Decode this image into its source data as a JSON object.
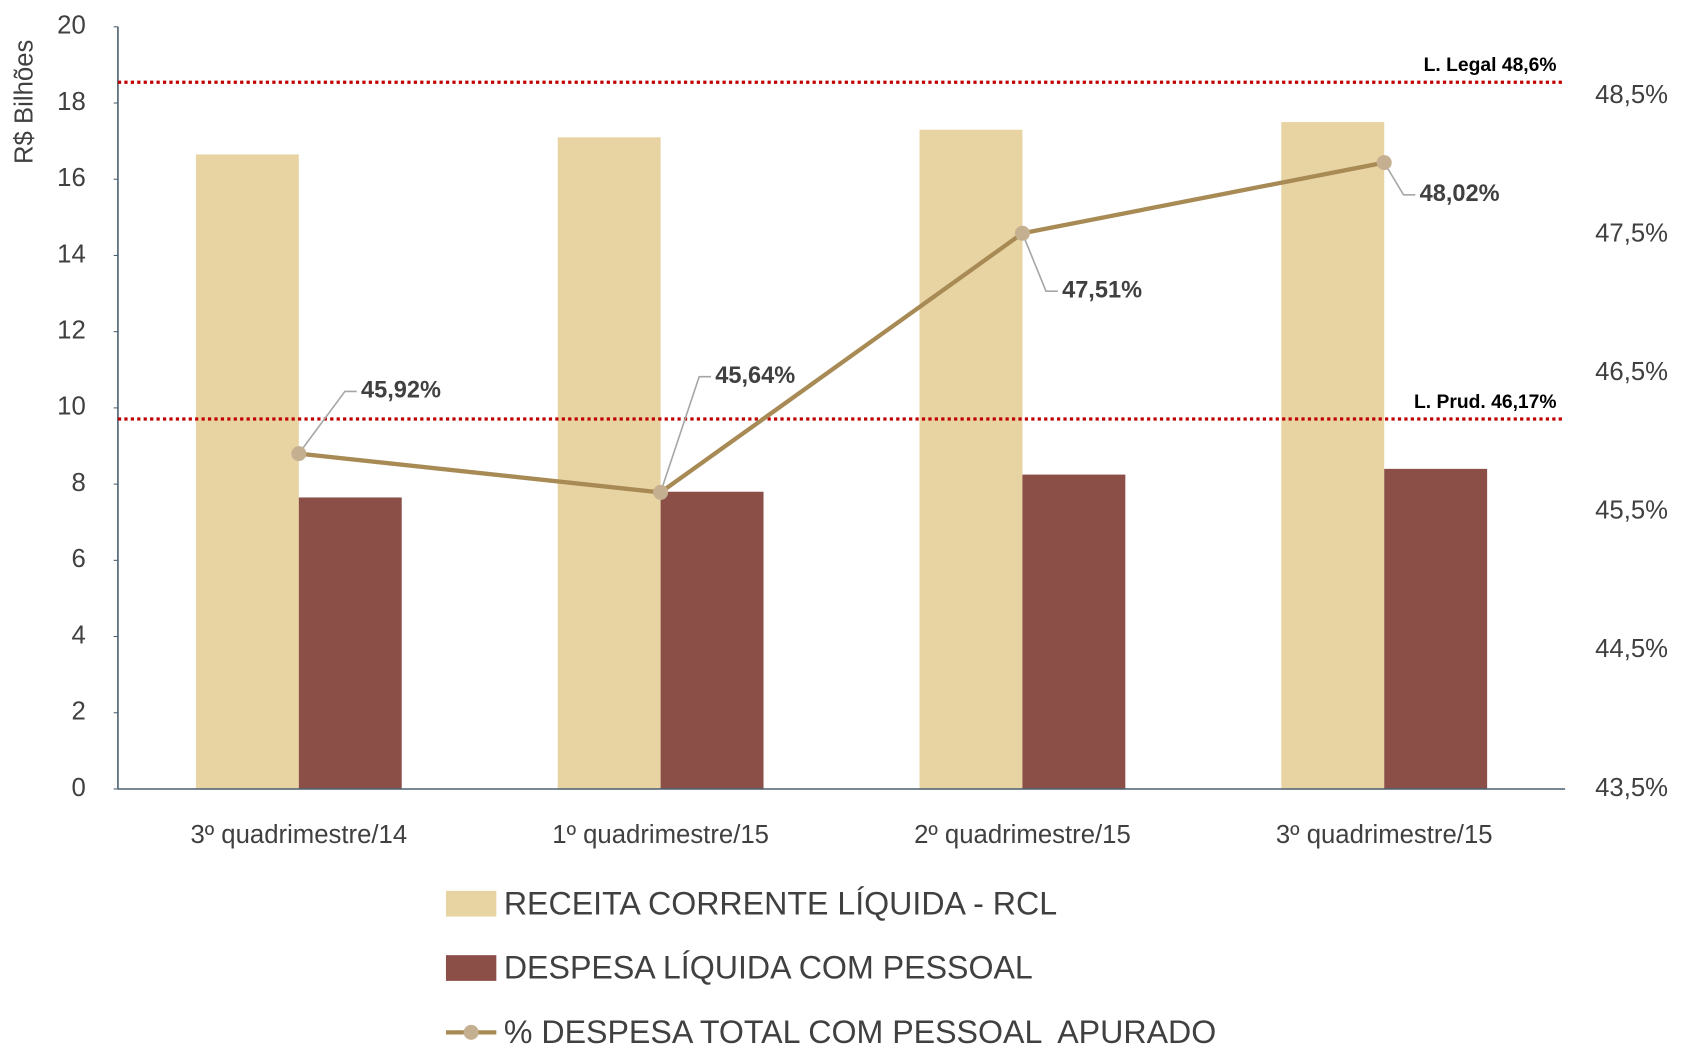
{
  "chart_data": {
    "type": "bar",
    "y_label": "R$ Bilhões",
    "categories": [
      "3º quadrimestre/14",
      "1º quadrimestre/15",
      "2º quadrimestre/15",
      "3º quadrimestre/15"
    ],
    "series": [
      {
        "name": "RECEITA CORRENTE LÍQUIDA - RCL",
        "type": "bar",
        "color": "#e8d3a2",
        "values": [
          16.65,
          17.1,
          17.3,
          17.5
        ]
      },
      {
        "name": "DESPESA LÍQUIDA COM PESSOAL",
        "type": "bar",
        "color": "#8b4f48",
        "values": [
          7.65,
          7.8,
          8.25,
          8.4
        ]
      },
      {
        "name": "% DESPESA TOTAL COM PESSOAL  APURADO",
        "type": "line",
        "axis": "y2",
        "color": "#a88a55",
        "marker_color": "#c4b091",
        "values": [
          45.92,
          45.64,
          47.51,
          48.02
        ],
        "value_labels": [
          "45,92%",
          "45,64%",
          "47,51%",
          "48,02%"
        ]
      }
    ],
    "reference_lines": [
      {
        "axis": "y2",
        "value": 48.6,
        "label": "L. Legal 48,6%",
        "color": "#c00000"
      },
      {
        "axis": "y2",
        "value": 46.17,
        "label": "L. Prud. 46,17%",
        "color": "#c00000"
      }
    ],
    "ylim": [
      0,
      20
    ],
    "yticks": [
      0,
      2,
      4,
      6,
      8,
      10,
      12,
      14,
      16,
      18,
      20
    ],
    "y2lim": [
      43.5,
      49
    ],
    "y2ticks": [
      {
        "value": 43.5,
        "label": "43,5%"
      },
      {
        "value": 44.5,
        "label": "44,5%"
      },
      {
        "value": 45.5,
        "label": "45,5%"
      },
      {
        "value": 46.5,
        "label": "46,5%"
      },
      {
        "value": 47.5,
        "label": "47,5%"
      },
      {
        "value": 48.5,
        "label": "48,5%"
      }
    ],
    "grid": false
  }
}
